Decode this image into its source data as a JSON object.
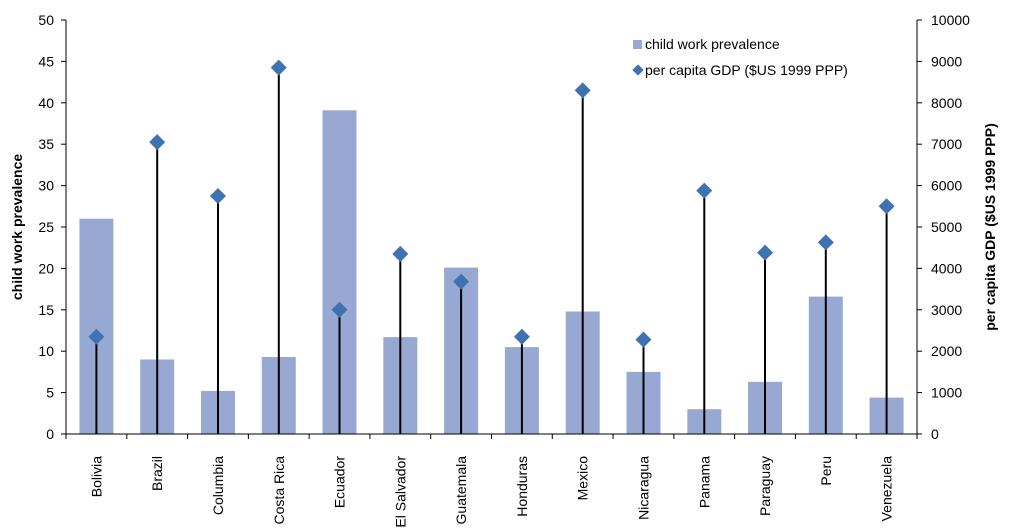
{
  "chart_data": {
    "type": "bar",
    "categories": [
      "Bolivia",
      "Brazil",
      "Columbia",
      "Costa Rica",
      "Ecuador",
      "El Salvador",
      "Guatemala",
      "Honduras",
      "Mexico",
      "Nicaragua",
      "Panama",
      "Paraguay",
      "Peru",
      "Venezuela"
    ],
    "series": [
      {
        "name": "child work prevalence",
        "type": "bar",
        "axis": "left",
        "color": "#97a9d2",
        "values": [
          26,
          9,
          5.2,
          9.3,
          39.1,
          11.7,
          20.1,
          10.5,
          14.8,
          7.5,
          3,
          6.3,
          16.6,
          4.4
        ]
      },
      {
        "name": "per capita GDP ($US 1999 PPP)",
        "type": "scatter",
        "axis": "right",
        "color": "#3f72b1",
        "values": [
          2350,
          7050,
          5750,
          8850,
          3000,
          4350,
          3680,
          2350,
          8300,
          2280,
          5880,
          4380,
          4630,
          5500
        ]
      }
    ],
    "left_axis": {
      "label": "child work prevalence",
      "ylim": [
        0,
        50
      ],
      "ticks": [
        "0",
        "5",
        "10",
        "15",
        "20",
        "25",
        "30",
        "35",
        "40",
        "45",
        "50"
      ]
    },
    "right_axis": {
      "label": "per capita GDP ($US 1999 PPP)",
      "ylim": [
        0,
        10000
      ],
      "ticks": [
        "0",
        "1000",
        "2000",
        "3000",
        "4000",
        "5000",
        "6000",
        "7000",
        "8000",
        "9000",
        "10000"
      ]
    },
    "legend_position": "top-right",
    "grid": false,
    "drop_lines": true
  }
}
